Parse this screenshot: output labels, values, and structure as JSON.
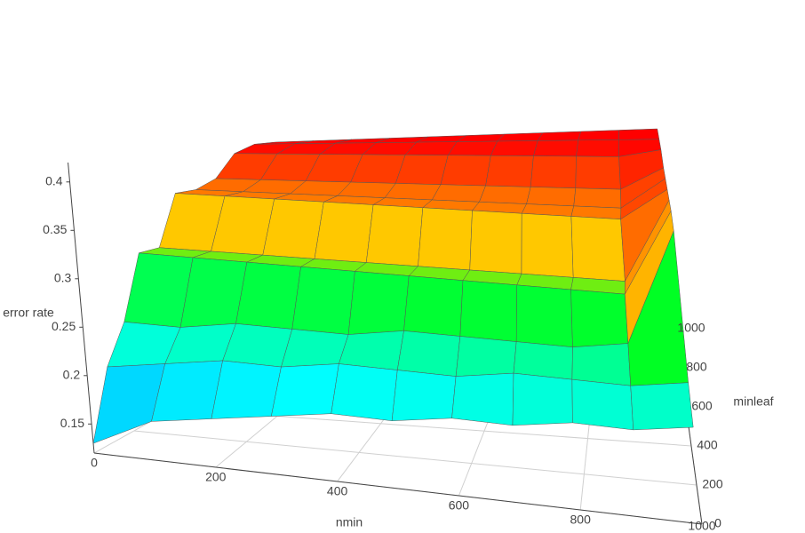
{
  "chart_data": {
    "type": "surface",
    "x_label": "nmin",
    "y_label": "minleaf",
    "z_label": "error rate",
    "x": [
      0,
      100,
      200,
      300,
      400,
      500,
      600,
      700,
      800,
      900,
      1000
    ],
    "y": [
      0,
      100,
      200,
      300,
      400,
      500,
      600,
      700,
      800,
      900,
      1000
    ],
    "z": [
      [
        0.13,
        0.16,
        0.17,
        0.18,
        0.19,
        0.19,
        0.2,
        0.2,
        0.21,
        0.21,
        0.22
      ],
      [
        0.2,
        0.21,
        0.22,
        0.22,
        0.23,
        0.23,
        0.23,
        0.24,
        0.24,
        0.24,
        0.25
      ],
      [
        0.24,
        0.24,
        0.25,
        0.25,
        0.25,
        0.26,
        0.26,
        0.26,
        0.26,
        0.27,
        0.4
      ],
      [
        0.31,
        0.31,
        0.31,
        0.31,
        0.31,
        0.31,
        0.31,
        0.31,
        0.31,
        0.31,
        0.41
      ],
      [
        0.31,
        0.31,
        0.31,
        0.31,
        0.31,
        0.31,
        0.31,
        0.31,
        0.31,
        0.31,
        0.41
      ],
      [
        0.37,
        0.37,
        0.37,
        0.37,
        0.37,
        0.37,
        0.37,
        0.37,
        0.37,
        0.37,
        0.41
      ],
      [
        0.37,
        0.37,
        0.37,
        0.37,
        0.37,
        0.37,
        0.37,
        0.37,
        0.37,
        0.37,
        0.41
      ],
      [
        0.38,
        0.38,
        0.38,
        0.38,
        0.38,
        0.38,
        0.38,
        0.38,
        0.38,
        0.38,
        0.41
      ],
      [
        0.41,
        0.41,
        0.41,
        0.41,
        0.41,
        0.41,
        0.41,
        0.41,
        0.41,
        0.41,
        0.42
      ],
      [
        0.42,
        0.42,
        0.42,
        0.42,
        0.42,
        0.42,
        0.42,
        0.42,
        0.42,
        0.42,
        0.42
      ],
      [
        0.42,
        0.42,
        0.42,
        0.42,
        0.42,
        0.42,
        0.42,
        0.42,
        0.42,
        0.42,
        0.42
      ]
    ],
    "xlim": [
      0,
      1000
    ],
    "ylim": [
      0,
      1000
    ],
    "zlim": [
      0.12,
      0.42
    ],
    "xticks": [
      0,
      200,
      400,
      600,
      800,
      1000
    ],
    "yticks": [
      0,
      200,
      400,
      600,
      800,
      1000
    ],
    "zticks": [
      0.15,
      0.2,
      0.25,
      0.3,
      0.35,
      0.4
    ],
    "grid": true,
    "colorscale": [
      "#0040ff",
      "#00c8ff",
      "#00ffff",
      "#00ffa0",
      "#00ff20",
      "#ffd700",
      "#ff6600",
      "#ff0000"
    ]
  }
}
